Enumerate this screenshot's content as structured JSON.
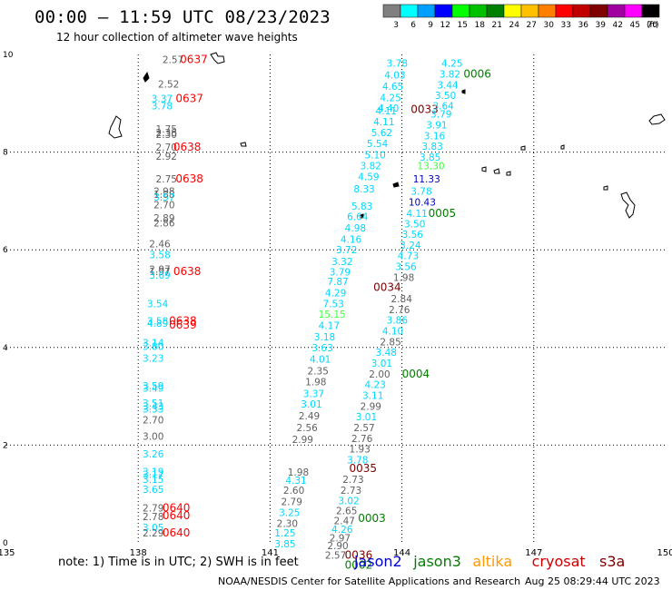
{
  "header": {
    "title": "00:00 – 11:59 UTC 08/23/2023",
    "subtitle": "12 hour collection of altimeter wave heights"
  },
  "legend": {
    "unit": "(ft)",
    "bins": [
      {
        "label": "3",
        "color": "#808080"
      },
      {
        "label": "6",
        "color": "#00ffff"
      },
      {
        "label": "9",
        "color": "#00a0ff"
      },
      {
        "label": "12",
        "color": "#0000ff"
      },
      {
        "label": "15",
        "color": "#00ff00"
      },
      {
        "label": "18",
        "color": "#00c000"
      },
      {
        "label": "21",
        "color": "#008000"
      },
      {
        "label": "24",
        "color": "#ffff00"
      },
      {
        "label": "27",
        "color": "#ffc000"
      },
      {
        "label": "30",
        "color": "#ff8000"
      },
      {
        "label": "33",
        "color": "#ff0000"
      },
      {
        "label": "36",
        "color": "#c00000"
      },
      {
        "label": "39",
        "color": "#800000"
      },
      {
        "label": "42",
        "color": "#a000a0"
      },
      {
        "label": "45",
        "color": "#ff00ff"
      },
      {
        "label": "70",
        "color": "#000000"
      }
    ]
  },
  "axes": {
    "x_ticks": [
      "135",
      "138",
      "141",
      "144",
      "147",
      "150"
    ],
    "y_ticks": [
      "0",
      "2",
      "4",
      "6",
      "8",
      "10"
    ]
  },
  "colors": {
    "gray": "#606060",
    "cyan": "#00d8ff",
    "lime": "#40ff40",
    "green": "#008000",
    "blue": "#0000c0",
    "red": "#ff0000",
    "darkred": "#800000"
  },
  "observations": [
    {
      "t": "2.57",
      "lon": 138.55,
      "lat": 9.9,
      "c": "gray"
    },
    {
      "t": "0637",
      "lon": 138.95,
      "lat": 9.9,
      "c": "red"
    },
    {
      "t": "2.52",
      "lon": 138.45,
      "lat": 9.4,
      "c": "gray"
    },
    {
      "t": "3.37",
      "lon": 138.3,
      "lat": 9.1,
      "c": "cyan"
    },
    {
      "t": "3.78",
      "lon": 138.3,
      "lat": 8.95,
      "c": "cyan"
    },
    {
      "t": "0637",
      "lon": 138.85,
      "lat": 9.1,
      "c": "red"
    },
    {
      "t": "1.75",
      "lon": 138.4,
      "lat": 8.48,
      "c": "gray"
    },
    {
      "t": "2.38",
      "lon": 138.4,
      "lat": 8.4,
      "c": "gray"
    },
    {
      "t": "2.30",
      "lon": 138.4,
      "lat": 8.36,
      "c": "gray"
    },
    {
      "t": "2.70",
      "lon": 138.4,
      "lat": 8.1,
      "c": "gray"
    },
    {
      "t": "0638",
      "lon": 138.8,
      "lat": 8.1,
      "c": "red"
    },
    {
      "t": "2.92",
      "lon": 138.4,
      "lat": 7.92,
      "c": "gray"
    },
    {
      "t": "2.75",
      "lon": 138.4,
      "lat": 7.45,
      "c": "gray"
    },
    {
      "t": "0638",
      "lon": 138.85,
      "lat": 7.45,
      "c": "red"
    },
    {
      "t": "2.98",
      "lon": 138.35,
      "lat": 7.2,
      "c": "gray"
    },
    {
      "t": "1.88",
      "lon": 138.35,
      "lat": 7.14,
      "c": "gray"
    },
    {
      "t": "3.57",
      "lon": 138.35,
      "lat": 7.08,
      "c": "cyan"
    },
    {
      "t": "2.70",
      "lon": 138.35,
      "lat": 6.92,
      "c": "gray"
    },
    {
      "t": "2.89",
      "lon": 138.35,
      "lat": 6.65,
      "c": "gray"
    },
    {
      "t": "2.86",
      "lon": 138.35,
      "lat": 6.55,
      "c": "gray"
    },
    {
      "t": "2.46",
      "lon": 138.25,
      "lat": 6.12,
      "c": "gray"
    },
    {
      "t": "3.58",
      "lon": 138.25,
      "lat": 5.9,
      "c": "cyan"
    },
    {
      "t": "2.97",
      "lon": 138.25,
      "lat": 5.6,
      "c": "gray"
    },
    {
      "t": "1.97",
      "lon": 138.25,
      "lat": 5.56,
      "c": "gray"
    },
    {
      "t": "3.69",
      "lon": 138.25,
      "lat": 5.48,
      "c": "cyan"
    },
    {
      "t": "0638",
      "lon": 138.8,
      "lat": 5.56,
      "c": "red"
    },
    {
      "t": "3.54",
      "lon": 138.2,
      "lat": 4.9,
      "c": "cyan"
    },
    {
      "t": "3.58",
      "lon": 138.2,
      "lat": 4.54,
      "c": "cyan"
    },
    {
      "t": "4.89",
      "lon": 138.2,
      "lat": 4.5,
      "c": "cyan"
    },
    {
      "t": "0638",
      "lon": 138.7,
      "lat": 4.54,
      "c": "red"
    },
    {
      "t": "0639",
      "lon": 138.7,
      "lat": 4.46,
      "c": "red"
    },
    {
      "t": "3.14",
      "lon": 138.1,
      "lat": 4.1,
      "c": "cyan"
    },
    {
      "t": "3.80",
      "lon": 138.1,
      "lat": 4.02,
      "c": "cyan"
    },
    {
      "t": "3.23",
      "lon": 138.1,
      "lat": 3.78,
      "c": "cyan"
    },
    {
      "t": "3.59",
      "lon": 138.1,
      "lat": 3.22,
      "c": "cyan"
    },
    {
      "t": "3.49",
      "lon": 138.1,
      "lat": 3.17,
      "c": "cyan"
    },
    {
      "t": "3.51",
      "lon": 138.1,
      "lat": 2.86,
      "c": "cyan"
    },
    {
      "t": "3.43",
      "lon": 138.1,
      "lat": 2.8,
      "c": "cyan"
    },
    {
      "t": "3.33",
      "lon": 138.1,
      "lat": 2.74,
      "c": "cyan"
    },
    {
      "t": "2.70",
      "lon": 138.1,
      "lat": 2.52,
      "c": "gray"
    },
    {
      "t": "3.00",
      "lon": 138.1,
      "lat": 2.18,
      "c": "gray"
    },
    {
      "t": "3.26",
      "lon": 138.1,
      "lat": 1.82,
      "c": "cyan"
    },
    {
      "t": "3.19",
      "lon": 138.1,
      "lat": 1.46,
      "c": "cyan"
    },
    {
      "t": "3.17",
      "lon": 138.1,
      "lat": 1.4,
      "c": "cyan"
    },
    {
      "t": "3.15",
      "lon": 138.1,
      "lat": 1.3,
      "c": "cyan"
    },
    {
      "t": "3.65",
      "lon": 138.1,
      "lat": 1.1,
      "c": "cyan"
    },
    {
      "t": "2.79",
      "lon": 138.1,
      "lat": 0.72,
      "c": "gray"
    },
    {
      "t": "0640",
      "lon": 138.55,
      "lat": 0.72,
      "c": "red"
    },
    {
      "t": "2.78",
      "lon": 138.1,
      "lat": 0.54,
      "c": "gray"
    },
    {
      "t": "0640",
      "lon": 138.55,
      "lat": 0.56,
      "c": "red"
    },
    {
      "t": "3.05",
      "lon": 138.1,
      "lat": 0.32,
      "c": "cyan"
    },
    {
      "t": "2.29",
      "lon": 138.1,
      "lat": 0.2,
      "c": "gray"
    },
    {
      "t": "0640",
      "lon": 138.55,
      "lat": 0.2,
      "c": "red"
    },
    {
      "t": "3.78",
      "lon": 143.65,
      "lat": 9.82,
      "c": "cyan"
    },
    {
      "t": "4.03",
      "lon": 143.6,
      "lat": 9.58,
      "c": "cyan"
    },
    {
      "t": "4.65",
      "lon": 143.55,
      "lat": 9.35,
      "c": "cyan"
    },
    {
      "t": "4.25",
      "lon": 143.5,
      "lat": 9.12,
      "c": "cyan"
    },
    {
      "t": "4.40",
      "lon": 143.45,
      "lat": 8.9,
      "c": "cyan"
    },
    {
      "t": "4.11",
      "lon": 143.4,
      "lat": 8.85,
      "c": "cyan"
    },
    {
      "t": "0033",
      "lon": 144.2,
      "lat": 8.88,
      "c": "darkred"
    },
    {
      "t": "4.11",
      "lon": 143.35,
      "lat": 8.62,
      "c": "cyan"
    },
    {
      "t": "5.62",
      "lon": 143.3,
      "lat": 8.4,
      "c": "cyan"
    },
    {
      "t": "5.54",
      "lon": 143.2,
      "lat": 8.18,
      "c": "cyan"
    },
    {
      "t": "5.10",
      "lon": 143.15,
      "lat": 7.95,
      "c": "cyan"
    },
    {
      "t": "3.82",
      "lon": 143.05,
      "lat": 7.72,
      "c": "cyan"
    },
    {
      "t": "4.59",
      "lon": 143.0,
      "lat": 7.5,
      "c": "cyan"
    },
    {
      "t": "8.33",
      "lon": 142.9,
      "lat": 7.25,
      "c": "cyan"
    },
    {
      "t": "5.83",
      "lon": 142.85,
      "lat": 6.9,
      "c": "cyan"
    },
    {
      "t": "6.64",
      "lon": 142.75,
      "lat": 6.68,
      "c": "cyan"
    },
    {
      "t": "4.98",
      "lon": 142.7,
      "lat": 6.45,
      "c": "cyan"
    },
    {
      "t": "4.16",
      "lon": 142.6,
      "lat": 6.22,
      "c": "cyan"
    },
    {
      "t": "3.72",
      "lon": 142.5,
      "lat": 6.0,
      "c": "cyan"
    },
    {
      "t": "3.32",
      "lon": 142.4,
      "lat": 5.76,
      "c": "cyan"
    },
    {
      "t": "3.79",
      "lon": 142.35,
      "lat": 5.55,
      "c": "cyan"
    },
    {
      "t": "7.87",
      "lon": 142.3,
      "lat": 5.35,
      "c": "cyan"
    },
    {
      "t": "4.29",
      "lon": 142.25,
      "lat": 5.12,
      "c": "cyan"
    },
    {
      "t": "7.53",
      "lon": 142.2,
      "lat": 4.9,
      "c": "cyan"
    },
    {
      "t": "15.15",
      "lon": 142.1,
      "lat": 4.68,
      "c": "lime"
    },
    {
      "t": "4.17",
      "lon": 142.1,
      "lat": 4.45,
      "c": "cyan"
    },
    {
      "t": "3.18",
      "lon": 142.0,
      "lat": 4.22,
      "c": "cyan"
    },
    {
      "t": "3.63",
      "lon": 141.95,
      "lat": 4.0,
      "c": "cyan"
    },
    {
      "t": "4.01",
      "lon": 141.9,
      "lat": 3.76,
      "c": "cyan"
    },
    {
      "t": "2.35",
      "lon": 141.85,
      "lat": 3.52,
      "c": "gray"
    },
    {
      "t": "1.98",
      "lon": 141.8,
      "lat": 3.3,
      "c": "gray"
    },
    {
      "t": "3.37",
      "lon": 141.75,
      "lat": 3.06,
      "c": "cyan"
    },
    {
      "t": "3.01",
      "lon": 141.7,
      "lat": 2.84,
      "c": "cyan"
    },
    {
      "t": "2.49",
      "lon": 141.65,
      "lat": 2.6,
      "c": "gray"
    },
    {
      "t": "2.56",
      "lon": 141.6,
      "lat": 2.36,
      "c": "gray"
    },
    {
      "t": "2.99",
      "lon": 141.5,
      "lat": 2.12,
      "c": "gray"
    },
    {
      "t": "1.98",
      "lon": 141.4,
      "lat": 1.45,
      "c": "gray"
    },
    {
      "t": "4.31",
      "lon": 141.35,
      "lat": 1.28,
      "c": "cyan"
    },
    {
      "t": "2.60",
      "lon": 141.3,
      "lat": 1.08,
      "c": "gray"
    },
    {
      "t": "2.79",
      "lon": 141.25,
      "lat": 0.85,
      "c": "gray"
    },
    {
      "t": "3.25",
      "lon": 141.2,
      "lat": 0.62,
      "c": "cyan"
    },
    {
      "t": "2.30",
      "lon": 141.15,
      "lat": 0.4,
      "c": "gray"
    },
    {
      "t": "1.25",
      "lon": 141.1,
      "lat": 0.2,
      "c": "cyan"
    },
    {
      "t": "3.85",
      "lon": 141.1,
      "lat": -0.02,
      "c": "cyan"
    },
    {
      "t": "4.25",
      "lon": 144.9,
      "lat": 9.82,
      "c": "cyan"
    },
    {
      "t": "3.82",
      "lon": 144.85,
      "lat": 9.6,
      "c": "cyan"
    },
    {
      "t": "0006",
      "lon": 145.4,
      "lat": 9.6,
      "c": "green"
    },
    {
      "t": "3.44",
      "lon": 144.8,
      "lat": 9.38,
      "c": "cyan"
    },
    {
      "t": "3.50",
      "lon": 144.75,
      "lat": 9.16,
      "c": "cyan"
    },
    {
      "t": "3.64",
      "lon": 144.7,
      "lat": 8.95,
      "c": "cyan"
    },
    {
      "t": "3.79",
      "lon": 144.65,
      "lat": 8.78,
      "c": "cyan"
    },
    {
      "t": "3.91",
      "lon": 144.55,
      "lat": 8.56,
      "c": "cyan"
    },
    {
      "t": "3.16",
      "lon": 144.5,
      "lat": 8.34,
      "c": "cyan"
    },
    {
      "t": "3.83",
      "lon": 144.45,
      "lat": 8.12,
      "c": "cyan"
    },
    {
      "t": "3.85",
      "lon": 144.4,
      "lat": 7.9,
      "c": "cyan"
    },
    {
      "t": "13.30",
      "lon": 144.35,
      "lat": 7.72,
      "c": "lime"
    },
    {
      "t": "11.33",
      "lon": 144.25,
      "lat": 7.45,
      "c": "blue"
    },
    {
      "t": "3.78",
      "lon": 144.2,
      "lat": 7.2,
      "c": "cyan"
    },
    {
      "t": "10.43",
      "lon": 144.15,
      "lat": 6.98,
      "c": "blue"
    },
    {
      "t": "4.11",
      "lon": 144.1,
      "lat": 6.75,
      "c": "cyan"
    },
    {
      "t": "0005",
      "lon": 144.6,
      "lat": 6.75,
      "c": "green"
    },
    {
      "t": "3.50",
      "lon": 144.05,
      "lat": 6.53,
      "c": "cyan"
    },
    {
      "t": "3.56",
      "lon": 144.0,
      "lat": 6.32,
      "c": "cyan"
    },
    {
      "t": "3.24",
      "lon": 143.95,
      "lat": 6.1,
      "c": "cyan"
    },
    {
      "t": "4.73",
      "lon": 143.9,
      "lat": 5.88,
      "c": "cyan"
    },
    {
      "t": "3.56",
      "lon": 143.85,
      "lat": 5.66,
      "c": "cyan"
    },
    {
      "t": "1.98",
      "lon": 143.8,
      "lat": 5.44,
      "c": "gray"
    },
    {
      "t": "0034",
      "lon": 143.35,
      "lat": 5.23,
      "c": "darkred"
    },
    {
      "t": "2.84",
      "lon": 143.75,
      "lat": 5.0,
      "c": "gray"
    },
    {
      "t": "2.76",
      "lon": 143.7,
      "lat": 4.78,
      "c": "gray"
    },
    {
      "t": "3.86",
      "lon": 143.65,
      "lat": 4.56,
      "c": "cyan"
    },
    {
      "t": "4.10",
      "lon": 143.55,
      "lat": 4.34,
      "c": "cyan"
    },
    {
      "t": "2.85",
      "lon": 143.5,
      "lat": 4.12,
      "c": "gray"
    },
    {
      "t": "3.48",
      "lon": 143.4,
      "lat": 3.9,
      "c": "cyan"
    },
    {
      "t": "3.01",
      "lon": 143.3,
      "lat": 3.68,
      "c": "cyan"
    },
    {
      "t": "2.00",
      "lon": 143.25,
      "lat": 3.46,
      "c": "gray"
    },
    {
      "t": "0004",
      "lon": 144.0,
      "lat": 3.46,
      "c": "green"
    },
    {
      "t": "4.23",
      "lon": 143.15,
      "lat": 3.24,
      "c": "cyan"
    },
    {
      "t": "3.11",
      "lon": 143.1,
      "lat": 3.02,
      "c": "cyan"
    },
    {
      "t": "2.99",
      "lon": 143.05,
      "lat": 2.8,
      "c": "gray"
    },
    {
      "t": "3.01",
      "lon": 142.95,
      "lat": 2.58,
      "c": "cyan"
    },
    {
      "t": "2.57",
      "lon": 142.9,
      "lat": 2.36,
      "c": "gray"
    },
    {
      "t": "2.76",
      "lon": 142.85,
      "lat": 2.14,
      "c": "gray"
    },
    {
      "t": "1.93",
      "lon": 142.8,
      "lat": 1.92,
      "c": "gray"
    },
    {
      "t": "3.78",
      "lon": 142.75,
      "lat": 1.7,
      "c": "cyan"
    },
    {
      "t": "0035",
      "lon": 142.8,
      "lat": 1.52,
      "c": "darkred"
    },
    {
      "t": "2.73",
      "lon": 142.65,
      "lat": 1.3,
      "c": "gray"
    },
    {
      "t": "2.73",
      "lon": 142.6,
      "lat": 1.08,
      "c": "gray"
    },
    {
      "t": "3.02",
      "lon": 142.55,
      "lat": 0.86,
      "c": "cyan"
    },
    {
      "t": "2.65",
      "lon": 142.5,
      "lat": 0.66,
      "c": "gray"
    },
    {
      "t": "2.47",
      "lon": 142.45,
      "lat": 0.46,
      "c": "gray"
    },
    {
      "t": "0003",
      "lon": 143.0,
      "lat": 0.5,
      "c": "green"
    },
    {
      "t": "4.26",
      "lon": 142.4,
      "lat": 0.28,
      "c": "cyan"
    },
    {
      "t": "2.97",
      "lon": 142.35,
      "lat": 0.1,
      "c": "gray"
    },
    {
      "t": "2.90",
      "lon": 142.3,
      "lat": -0.06,
      "c": "gray"
    },
    {
      "t": "2.57",
      "lon": 142.25,
      "lat": -0.25,
      "c": "gray"
    },
    {
      "t": "0036",
      "lon": 142.7,
      "lat": -0.25,
      "c": "darkred"
    },
    {
      "t": "0002",
      "lon": 142.7,
      "lat": -0.46,
      "c": "green"
    }
  ],
  "footer": {
    "note": "note:  1) Time is in UTC;  2) SWH is in feet",
    "missions": [
      {
        "name": "jason2",
        "color": "#0000cc"
      },
      {
        "name": "jason3",
        "color": "#008000"
      },
      {
        "name": "altika",
        "color": "#ff9900"
      },
      {
        "name": "cryosat",
        "color": "#cc0000"
      },
      {
        "name": "s3a",
        "color": "#800000"
      }
    ],
    "credit": "NOAA/NESDIS Center for Satellite Applications and Research",
    "timestamp": "Aug 25 08:29:44 UTC 2023"
  }
}
